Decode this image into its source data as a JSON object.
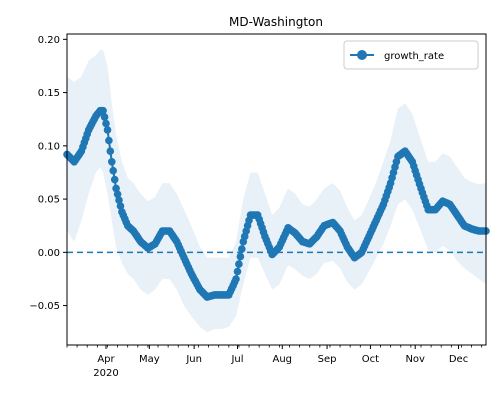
{
  "chart_data": {
    "type": "line",
    "title": "MD-Washington",
    "xlabel": "",
    "ylabel": "",
    "x_tick_labels": [
      "Apr",
      "May",
      "Jun",
      "Jul",
      "Aug",
      "Sep",
      "Oct",
      "Nov",
      "Dec"
    ],
    "x_tick_dates": [
      "2020-04-01",
      "2020-05-01",
      "2020-06-01",
      "2020-07-01",
      "2020-08-01",
      "2020-09-01",
      "2020-10-01",
      "2020-11-01",
      "2020-12-01"
    ],
    "x_year_label": "2020",
    "xlim": [
      "2020-03-05",
      "2020-12-20"
    ],
    "ylim": [
      -0.087,
      0.205
    ],
    "y_ticks": [
      -0.05,
      0.0,
      0.05,
      0.1,
      0.15,
      0.2
    ],
    "y_tick_labels": [
      "−0.05",
      "0.00",
      "0.05",
      "0.10",
      "0.15",
      "0.20"
    ],
    "grid": false,
    "legend_placement": "top-right",
    "series": [
      {
        "name": "growth_rate",
        "color": "#1f77b4",
        "marker": "circle",
        "x": [
          "2020-03-05",
          "2020-03-10",
          "2020-03-15",
          "2020-03-20",
          "2020-03-25",
          "2020-03-28",
          "2020-03-30",
          "2020-04-02",
          "2020-04-05",
          "2020-04-08",
          "2020-04-12",
          "2020-04-16",
          "2020-04-20",
          "2020-04-25",
          "2020-04-30",
          "2020-05-05",
          "2020-05-10",
          "2020-05-15",
          "2020-05-20",
          "2020-05-25",
          "2020-05-30",
          "2020-06-05",
          "2020-06-10",
          "2020-06-15",
          "2020-06-20",
          "2020-06-25",
          "2020-06-30",
          "2020-07-05",
          "2020-07-10",
          "2020-07-15",
          "2020-07-20",
          "2020-07-25",
          "2020-07-30",
          "2020-08-05",
          "2020-08-10",
          "2020-08-15",
          "2020-08-20",
          "2020-08-25",
          "2020-08-30",
          "2020-09-05",
          "2020-09-10",
          "2020-09-15",
          "2020-09-20",
          "2020-09-25",
          "2020-09-30",
          "2020-10-05",
          "2020-10-10",
          "2020-10-15",
          "2020-10-20",
          "2020-10-25",
          "2020-10-30",
          "2020-11-05",
          "2020-11-10",
          "2020-11-15",
          "2020-11-20",
          "2020-11-25",
          "2020-11-30",
          "2020-12-05",
          "2020-12-10",
          "2020-12-15",
          "2020-12-20"
        ],
        "y": [
          0.092,
          0.085,
          0.095,
          0.115,
          0.128,
          0.133,
          0.133,
          0.115,
          0.085,
          0.06,
          0.038,
          0.025,
          0.02,
          0.01,
          0.004,
          0.008,
          0.02,
          0.02,
          0.01,
          -0.005,
          -0.02,
          -0.035,
          -0.042,
          -0.04,
          -0.04,
          -0.04,
          -0.025,
          0.01,
          0.035,
          0.035,
          0.015,
          -0.002,
          0.005,
          0.023,
          0.018,
          0.01,
          0.008,
          0.015,
          0.025,
          0.028,
          0.02,
          0.005,
          -0.005,
          0.0,
          0.015,
          0.03,
          0.045,
          0.065,
          0.09,
          0.095,
          0.085,
          0.06,
          0.04,
          0.04,
          0.048,
          0.045,
          0.035,
          0.025,
          0.022,
          0.02,
          0.02
        ],
        "band_lower": [
          0.02,
          0.01,
          0.03,
          0.055,
          0.075,
          0.08,
          0.075,
          0.055,
          0.03,
          0.005,
          -0.01,
          -0.02,
          -0.025,
          -0.035,
          -0.04,
          -0.035,
          -0.025,
          -0.025,
          -0.035,
          -0.05,
          -0.06,
          -0.07,
          -0.075,
          -0.072,
          -0.072,
          -0.07,
          -0.06,
          -0.03,
          -0.005,
          -0.005,
          -0.02,
          -0.035,
          -0.03,
          -0.012,
          -0.016,
          -0.022,
          -0.025,
          -0.02,
          -0.01,
          -0.008,
          -0.015,
          -0.028,
          -0.035,
          -0.03,
          -0.018,
          -0.005,
          0.008,
          0.025,
          0.045,
          0.05,
          0.04,
          0.02,
          0.002,
          0.0,
          0.006,
          0.002,
          -0.008,
          -0.015,
          -0.02,
          -0.025,
          -0.03
        ],
        "band_upper": [
          0.165,
          0.16,
          0.165,
          0.18,
          0.185,
          0.19,
          0.19,
          0.175,
          0.14,
          0.11,
          0.085,
          0.07,
          0.065,
          0.055,
          0.048,
          0.052,
          0.065,
          0.065,
          0.055,
          0.04,
          0.025,
          0.005,
          -0.005,
          -0.005,
          -0.005,
          -0.005,
          0.01,
          0.05,
          0.075,
          0.075,
          0.055,
          0.035,
          0.042,
          0.06,
          0.055,
          0.045,
          0.043,
          0.05,
          0.06,
          0.065,
          0.058,
          0.042,
          0.03,
          0.035,
          0.05,
          0.066,
          0.085,
          0.105,
          0.135,
          0.14,
          0.13,
          0.105,
          0.085,
          0.085,
          0.093,
          0.09,
          0.08,
          0.07,
          0.066,
          0.064,
          0.065
        ]
      },
      {
        "name": "",
        "style": "dashed",
        "color": "#1f77b4",
        "constant_y": 0.0
      }
    ],
    "band_color": "#e8f0f8"
  }
}
